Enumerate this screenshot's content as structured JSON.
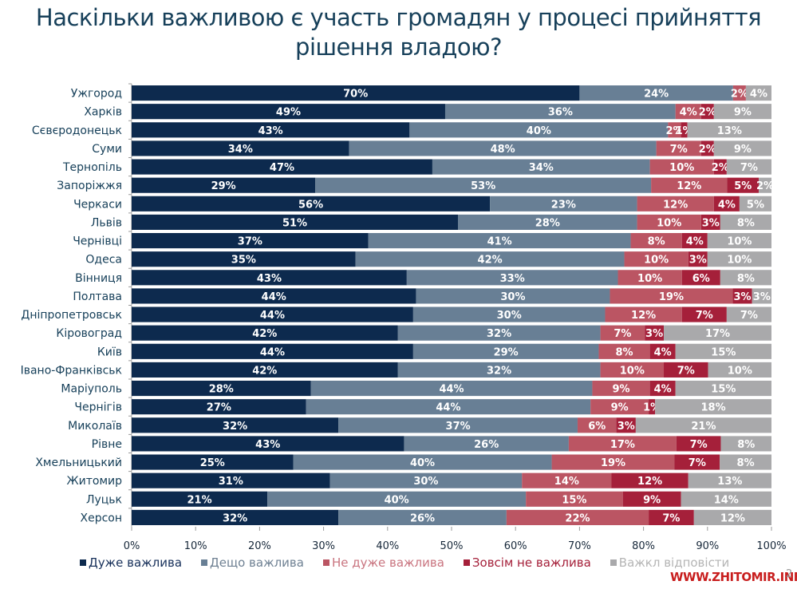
{
  "chart_data": {
    "type": "bar",
    "orientation": "horizontal",
    "stacked": "percent",
    "title": "Наскільки важливою є участь громадян у процесі прийняття рішення владою?",
    "title_lines": [
      "Наскільки важливою є участь громадян у процесі прийняття",
      "рішення владою?"
    ],
    "xlabel": "",
    "ylabel": "",
    "xlim": [
      0,
      100
    ],
    "x_ticks": [
      "0%",
      "10%",
      "20%",
      "30%",
      "40%",
      "50%",
      "60%",
      "70%",
      "80%",
      "90%",
      "100%"
    ],
    "grid": false,
    "legend_position": "bottom",
    "categories": [
      "Ужгород",
      "Харків",
      "Сєвєродонецьк",
      "Суми",
      "Тернопіль",
      "Запоріжжя",
      "Черкаси",
      "Львів",
      "Чернівці",
      "Одеса",
      "Вінниця",
      "Полтава",
      "Дніпропетровськ",
      "Кіровоград",
      "Київ",
      "Івано-Франківськ",
      "Маріуполь",
      "Чернігів",
      "Миколаїв",
      "Рівне",
      "Хмельницький",
      "Житомир",
      "Луцьк",
      "Херсон"
    ],
    "series": [
      {
        "name": "Дуже важлива",
        "color": "#0d2a4e",
        "values": [
          70,
          49,
          43,
          34,
          47,
          29,
          56,
          51,
          37,
          35,
          43,
          44,
          44,
          42,
          44,
          42,
          28,
          27,
          32,
          43,
          25,
          31,
          21,
          32
        ]
      },
      {
        "name": "Дещо важлива",
        "color": "#687f95",
        "values": [
          24,
          36,
          40,
          48,
          34,
          53,
          23,
          28,
          41,
          42,
          33,
          30,
          30,
          32,
          29,
          32,
          44,
          44,
          37,
          26,
          40,
          30,
          40,
          26
        ]
      },
      {
        "name": "Не дуже важлива",
        "color": "#bb5563",
        "values": [
          2,
          4,
          2,
          7,
          10,
          12,
          12,
          10,
          8,
          10,
          10,
          19,
          12,
          7,
          8,
          10,
          9,
          9,
          6,
          17,
          19,
          14,
          15,
          22
        ]
      },
      {
        "name": "Зовсім не важлива",
        "color": "#a5203a",
        "values": [
          0,
          2,
          1,
          2,
          2,
          5,
          4,
          3,
          4,
          3,
          6,
          3,
          7,
          3,
          4,
          7,
          4,
          1,
          3,
          7,
          7,
          12,
          9,
          7
        ]
      },
      {
        "name": "Важкл відповісти",
        "color": "#a9a9ab",
        "values": [
          4,
          9,
          13,
          9,
          7,
          2,
          5,
          8,
          10,
          10,
          8,
          3,
          7,
          17,
          15,
          10,
          15,
          18,
          21,
          8,
          8,
          13,
          14,
          12
        ]
      }
    ]
  },
  "legend": [
    {
      "label": "Дуже важлива",
      "color": "#0d2a4e",
      "text_color": "#17305a"
    },
    {
      "label": "Дещо важлива",
      "color": "#687f95",
      "text_color": "#6f8193"
    },
    {
      "label": "Не дуже важлива",
      "color": "#bb5563",
      "text_color": "#c9747f"
    },
    {
      "label": "Зовсім не важлива",
      "color": "#a5203a",
      "text_color": "#a5203a"
    },
    {
      "label": "Важкл відповісти",
      "color": "#a9a9ab",
      "text_color": "#b5b5b5"
    }
  ],
  "watermark": "WWW.ZHITOMIR.INFO",
  "page_number": "2"
}
